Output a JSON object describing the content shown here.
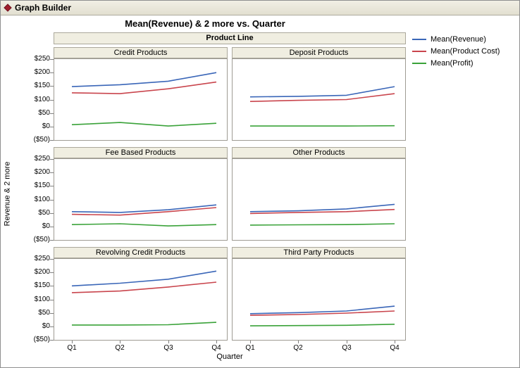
{
  "window": {
    "title": "Graph Builder"
  },
  "chart": {
    "title": "Mean(Revenue) & 2 more vs. Quarter",
    "group_header": "Product Line",
    "x_label": "Quarter",
    "y_label": "Revenue & 2 more"
  },
  "chart_data": {
    "type": "line",
    "x": [
      "Q1",
      "Q2",
      "Q3",
      "Q4"
    ],
    "xlabel": "Quarter",
    "ylabel": "Revenue & 2 more",
    "ylim": [
      -50,
      250
    ],
    "yticks": [
      250,
      200,
      150,
      100,
      50,
      0,
      -50
    ],
    "ytick_labels": [
      "$250",
      "$200",
      "$150",
      "$100",
      "$50",
      "$0",
      "($50)"
    ],
    "grid": false,
    "legend_position": "right",
    "group_label": "Product Line",
    "series_names": [
      "Mean(Revenue)",
      "Mean(Product Cost)",
      "Mean(Profit)"
    ],
    "series_colors": [
      "#3a66b8",
      "#c9454d",
      "#3aa239"
    ],
    "panels": [
      {
        "label": "Credit Products",
        "series": [
          [
            148,
            155,
            168,
            200
          ],
          [
            125,
            122,
            140,
            165
          ],
          [
            7,
            15,
            2,
            12
          ]
        ]
      },
      {
        "label": "Deposit Products",
        "series": [
          [
            110,
            112,
            116,
            148
          ],
          [
            93,
            97,
            100,
            122
          ],
          [
            2,
            2,
            2,
            3
          ]
        ]
      },
      {
        "label": "Fee Based Products",
        "series": [
          [
            55,
            52,
            62,
            80
          ],
          [
            45,
            42,
            55,
            70
          ],
          [
            7,
            10,
            2,
            7
          ]
        ]
      },
      {
        "label": "Other Products",
        "series": [
          [
            55,
            58,
            65,
            82
          ],
          [
            48,
            52,
            55,
            63
          ],
          [
            5,
            6,
            7,
            10
          ]
        ]
      },
      {
        "label": "Revolving Credit Products",
        "series": [
          [
            150,
            160,
            175,
            205
          ],
          [
            125,
            131,
            146,
            164
          ],
          [
            5,
            5,
            6,
            15
          ]
        ]
      },
      {
        "label": "Third Party Products",
        "series": [
          [
            47,
            51,
            57,
            75
          ],
          [
            41,
            44,
            49,
            57
          ],
          [
            2,
            3,
            4,
            8
          ]
        ]
      }
    ]
  }
}
